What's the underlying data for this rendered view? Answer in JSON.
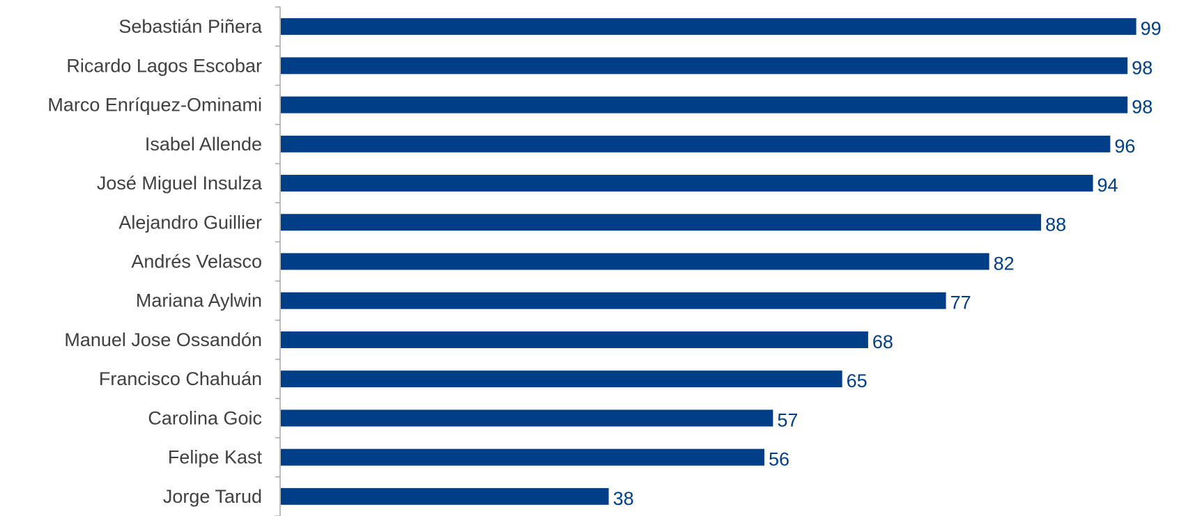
{
  "chart_data": {
    "type": "bar",
    "orientation": "horizontal",
    "categories": [
      "Sebastián Piñera",
      "Ricardo Lagos Escobar",
      "Marco Enríquez-Ominami",
      "Isabel Allende",
      "José Miguel Insulza",
      "Alejandro Guillier",
      "Andrés Velasco",
      "Mariana Aylwin",
      "Manuel Jose Ossandón",
      "Francisco Chahuán",
      "Carolina Goic",
      "Felipe Kast",
      "Jorge Tarud"
    ],
    "values": [
      99,
      98,
      98,
      96,
      94,
      88,
      82,
      77,
      68,
      65,
      57,
      56,
      38
    ],
    "value_labels": [
      "99",
      "98",
      "98",
      "96",
      "94",
      "88",
      "82",
      "77",
      "68",
      "65",
      "57",
      "56",
      "38"
    ],
    "title": "",
    "xlabel": "",
    "ylabel": "",
    "xlim": [
      0,
      100
    ],
    "grid": false,
    "legend": "none",
    "data_labels": true,
    "colors": {
      "bar": "#003F87",
      "value_label": "#003F87",
      "category_label": "#404040",
      "axis": "#A6A6A6"
    }
  }
}
